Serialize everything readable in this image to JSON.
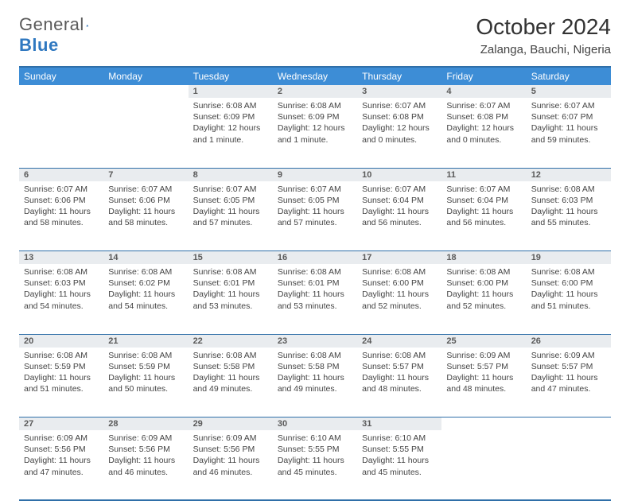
{
  "logo": {
    "part1": "General",
    "part2": "Blue"
  },
  "title": "October 2024",
  "location": "Zalanga, Bauchi, Nigeria",
  "colors": {
    "header_bg": "#3d8dd6",
    "header_text": "#ffffff",
    "border": "#2f6fa8",
    "daynum_bg": "#e9ecef",
    "logo_blue": "#2f78c0"
  },
  "weekdays": [
    "Sunday",
    "Monday",
    "Tuesday",
    "Wednesday",
    "Thursday",
    "Friday",
    "Saturday"
  ],
  "weeks": [
    [
      null,
      null,
      {
        "n": "1",
        "sr": "6:08 AM",
        "ss": "6:09 PM",
        "dl": "12 hours and 1 minute."
      },
      {
        "n": "2",
        "sr": "6:08 AM",
        "ss": "6:09 PM",
        "dl": "12 hours and 1 minute."
      },
      {
        "n": "3",
        "sr": "6:07 AM",
        "ss": "6:08 PM",
        "dl": "12 hours and 0 minutes."
      },
      {
        "n": "4",
        "sr": "6:07 AM",
        "ss": "6:08 PM",
        "dl": "12 hours and 0 minutes."
      },
      {
        "n": "5",
        "sr": "6:07 AM",
        "ss": "6:07 PM",
        "dl": "11 hours and 59 minutes."
      }
    ],
    [
      {
        "n": "6",
        "sr": "6:07 AM",
        "ss": "6:06 PM",
        "dl": "11 hours and 58 minutes."
      },
      {
        "n": "7",
        "sr": "6:07 AM",
        "ss": "6:06 PM",
        "dl": "11 hours and 58 minutes."
      },
      {
        "n": "8",
        "sr": "6:07 AM",
        "ss": "6:05 PM",
        "dl": "11 hours and 57 minutes."
      },
      {
        "n": "9",
        "sr": "6:07 AM",
        "ss": "6:05 PM",
        "dl": "11 hours and 57 minutes."
      },
      {
        "n": "10",
        "sr": "6:07 AM",
        "ss": "6:04 PM",
        "dl": "11 hours and 56 minutes."
      },
      {
        "n": "11",
        "sr": "6:07 AM",
        "ss": "6:04 PM",
        "dl": "11 hours and 56 minutes."
      },
      {
        "n": "12",
        "sr": "6:08 AM",
        "ss": "6:03 PM",
        "dl": "11 hours and 55 minutes."
      }
    ],
    [
      {
        "n": "13",
        "sr": "6:08 AM",
        "ss": "6:03 PM",
        "dl": "11 hours and 54 minutes."
      },
      {
        "n": "14",
        "sr": "6:08 AM",
        "ss": "6:02 PM",
        "dl": "11 hours and 54 minutes."
      },
      {
        "n": "15",
        "sr": "6:08 AM",
        "ss": "6:01 PM",
        "dl": "11 hours and 53 minutes."
      },
      {
        "n": "16",
        "sr": "6:08 AM",
        "ss": "6:01 PM",
        "dl": "11 hours and 53 minutes."
      },
      {
        "n": "17",
        "sr": "6:08 AM",
        "ss": "6:00 PM",
        "dl": "11 hours and 52 minutes."
      },
      {
        "n": "18",
        "sr": "6:08 AM",
        "ss": "6:00 PM",
        "dl": "11 hours and 52 minutes."
      },
      {
        "n": "19",
        "sr": "6:08 AM",
        "ss": "6:00 PM",
        "dl": "11 hours and 51 minutes."
      }
    ],
    [
      {
        "n": "20",
        "sr": "6:08 AM",
        "ss": "5:59 PM",
        "dl": "11 hours and 51 minutes."
      },
      {
        "n": "21",
        "sr": "6:08 AM",
        "ss": "5:59 PM",
        "dl": "11 hours and 50 minutes."
      },
      {
        "n": "22",
        "sr": "6:08 AM",
        "ss": "5:58 PM",
        "dl": "11 hours and 49 minutes."
      },
      {
        "n": "23",
        "sr": "6:08 AM",
        "ss": "5:58 PM",
        "dl": "11 hours and 49 minutes."
      },
      {
        "n": "24",
        "sr": "6:08 AM",
        "ss": "5:57 PM",
        "dl": "11 hours and 48 minutes."
      },
      {
        "n": "25",
        "sr": "6:09 AM",
        "ss": "5:57 PM",
        "dl": "11 hours and 48 minutes."
      },
      {
        "n": "26",
        "sr": "6:09 AM",
        "ss": "5:57 PM",
        "dl": "11 hours and 47 minutes."
      }
    ],
    [
      {
        "n": "27",
        "sr": "6:09 AM",
        "ss": "5:56 PM",
        "dl": "11 hours and 47 minutes."
      },
      {
        "n": "28",
        "sr": "6:09 AM",
        "ss": "5:56 PM",
        "dl": "11 hours and 46 minutes."
      },
      {
        "n": "29",
        "sr": "6:09 AM",
        "ss": "5:56 PM",
        "dl": "11 hours and 46 minutes."
      },
      {
        "n": "30",
        "sr": "6:10 AM",
        "ss": "5:55 PM",
        "dl": "11 hours and 45 minutes."
      },
      {
        "n": "31",
        "sr": "6:10 AM",
        "ss": "5:55 PM",
        "dl": "11 hours and 45 minutes."
      },
      null,
      null
    ]
  ],
  "labels": {
    "sunrise": "Sunrise:",
    "sunset": "Sunset:",
    "daylight": "Daylight:"
  }
}
